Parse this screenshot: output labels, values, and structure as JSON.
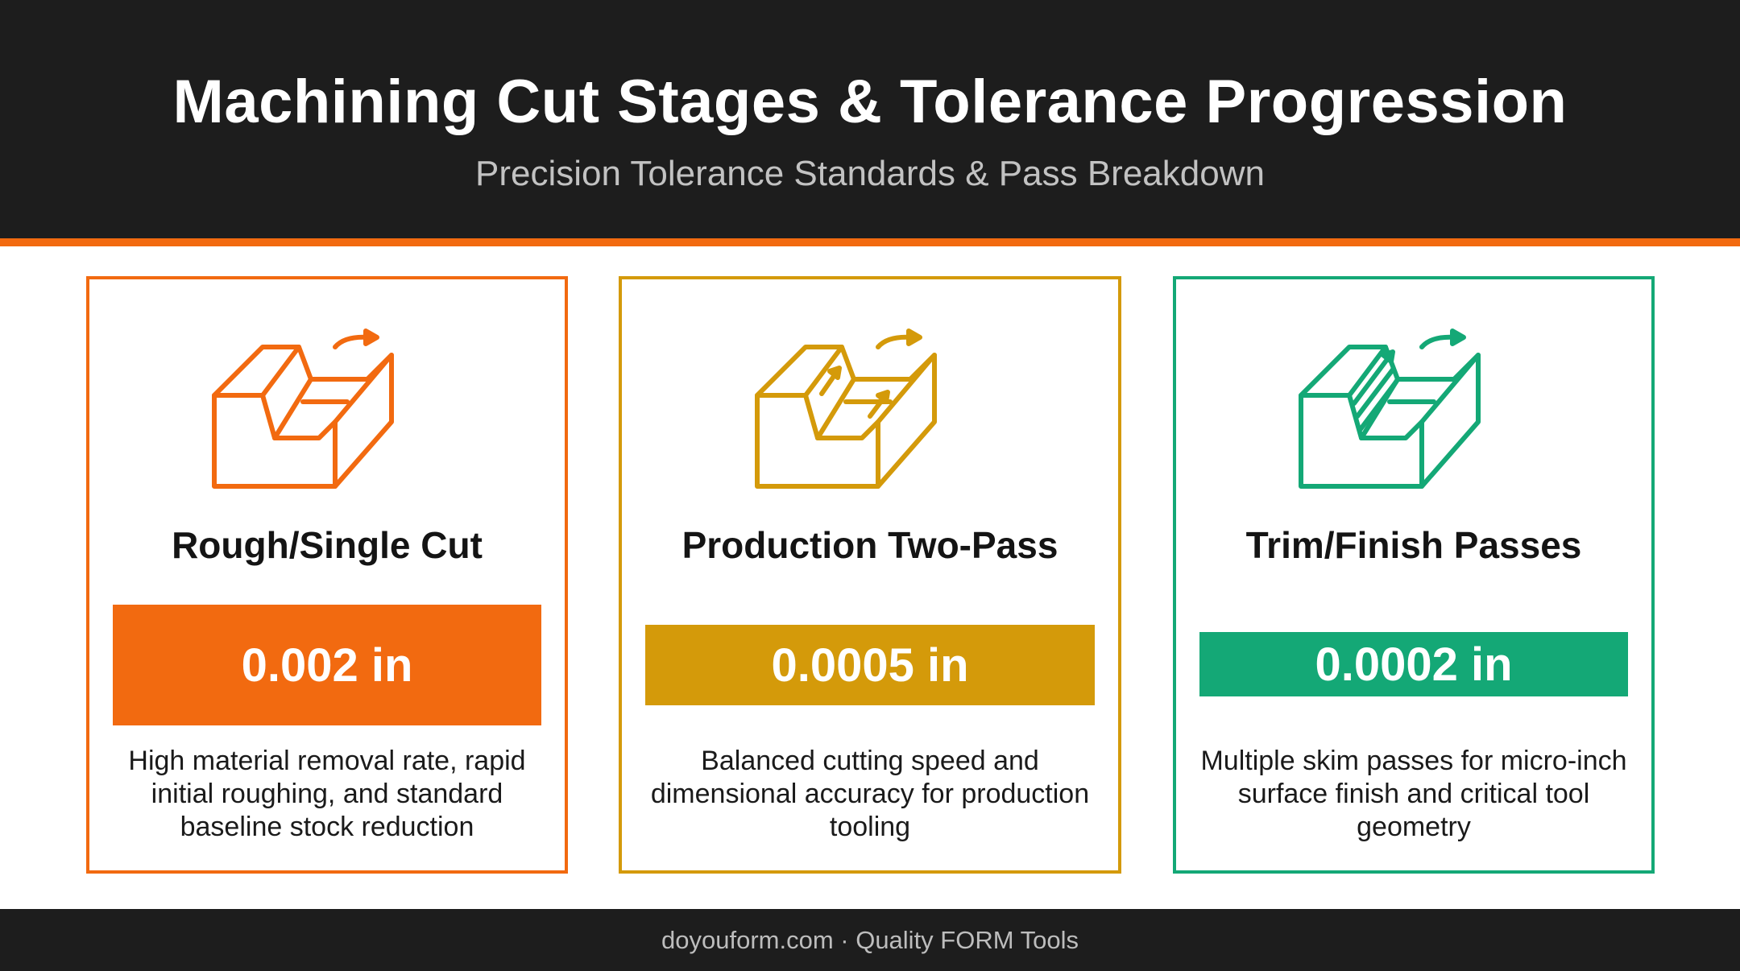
{
  "header": {
    "title": "Machining Cut Stages & Tolerance Progression",
    "subtitle": "Precision Tolerance Standards & Pass Breakdown"
  },
  "colors": {
    "header_bg": "#1d1d1d",
    "accent_line": "#f26a10",
    "rough": "#f26a10",
    "production": "#d49a0a",
    "finish": "#14a876"
  },
  "cards": [
    {
      "title": "Rough/Single Cut",
      "tolerance": "0.002 in",
      "tolerance_value": 0.002,
      "description": "High material removal rate, rapid initial roughing, and standard baseline stock reduction",
      "color": "#f26a10",
      "icon": "rough-cut-block-icon"
    },
    {
      "title": "Production Two-Pass",
      "tolerance": "0.0005 in",
      "tolerance_value": 0.0005,
      "description": "Balanced cutting speed and dimensional accuracy for production tooling",
      "color": "#d49a0a",
      "icon": "two-pass-block-icon"
    },
    {
      "title": "Trim/Finish Passes",
      "tolerance": "0.0002 in",
      "tolerance_value": 0.0002,
      "description": "Multiple skim passes for micro-inch surface finish and critical tool geometry",
      "color": "#14a876",
      "icon": "finish-pass-block-icon"
    }
  ],
  "footer": {
    "text": "doyouform.com · Quality FORM Tools"
  }
}
